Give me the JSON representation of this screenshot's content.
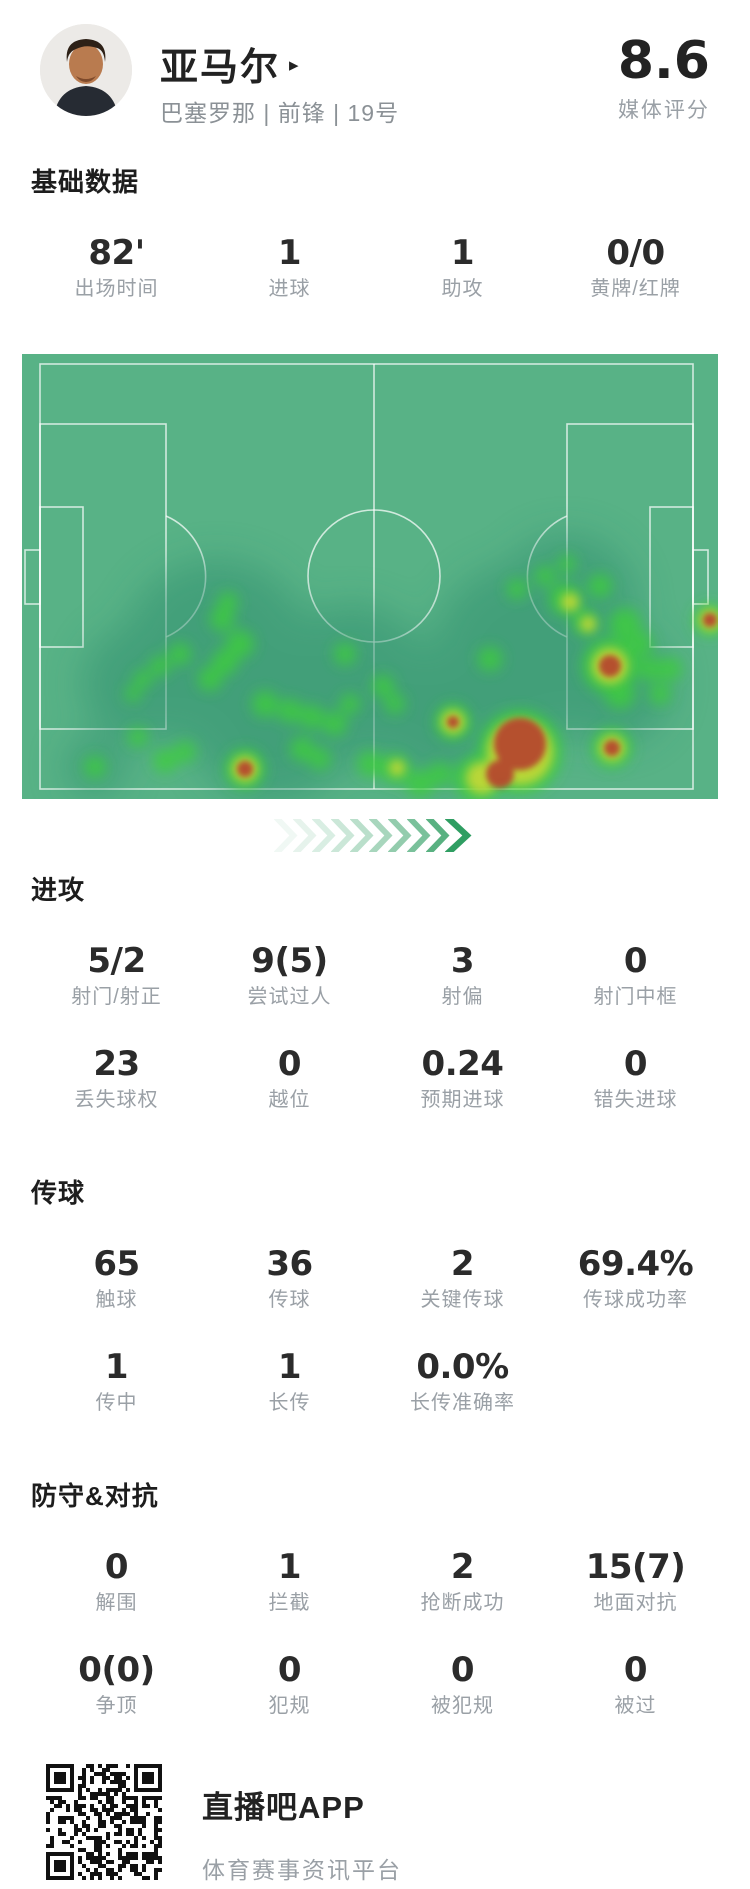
{
  "header": {
    "name": "亚马尔",
    "name_arrow": "▸",
    "meta": "巴塞罗那 | 前锋 | 19号",
    "rating": "8.6",
    "rating_label": "媒体评分"
  },
  "sections": [
    {
      "id": "basic",
      "title": "基础数据",
      "rows": [
        [
          {
            "value": "82'",
            "label": "出场时间"
          },
          {
            "value": "1",
            "label": "进球"
          },
          {
            "value": "1",
            "label": "助攻"
          },
          {
            "value": "0/0",
            "label": "黄牌/红牌"
          }
        ]
      ]
    },
    {
      "id": "attack",
      "title": "进攻",
      "rows": [
        [
          {
            "value": "5/2",
            "label": "射门/射正"
          },
          {
            "value": "9(5)",
            "label": "尝试过人"
          },
          {
            "value": "3",
            "label": "射偏"
          },
          {
            "value": "0",
            "label": "射门中框"
          }
        ],
        [
          {
            "value": "23",
            "label": "丢失球权"
          },
          {
            "value": "0",
            "label": "越位"
          },
          {
            "value": "0.24",
            "label": "预期进球"
          },
          {
            "value": "0",
            "label": "错失进球"
          }
        ]
      ]
    },
    {
      "id": "passing",
      "title": "传球",
      "rows": [
        [
          {
            "value": "65",
            "label": "触球"
          },
          {
            "value": "36",
            "label": "传球"
          },
          {
            "value": "2",
            "label": "关键传球"
          },
          {
            "value": "69.4%",
            "label": "传球成功率"
          }
        ],
        [
          {
            "value": "1",
            "label": "传中"
          },
          {
            "value": "1",
            "label": "长传"
          },
          {
            "value": "0.0%",
            "label": "长传准确率"
          }
        ]
      ]
    },
    {
      "id": "defense",
      "title": "防守&对抗",
      "rows": [
        [
          {
            "value": "0",
            "label": "解围"
          },
          {
            "value": "1",
            "label": "拦截"
          },
          {
            "value": "2",
            "label": "抢断成功"
          },
          {
            "value": "15(7)",
            "label": "地面对抗"
          }
        ],
        [
          {
            "value": "0(0)",
            "label": "争顶"
          },
          {
            "value": "0",
            "label": "犯规"
          },
          {
            "value": "0",
            "label": "被犯规"
          },
          {
            "value": "0",
            "label": "被过"
          }
        ]
      ]
    }
  ],
  "heatmap": {
    "icon": "pitch-heatmap",
    "field_color": "#58b286",
    "line_color": "rgba(255,255,255,0.72)",
    "layers": {
      "dark": {
        "color": "#2f8e6e",
        "opacity": 0.5,
        "blur": 18,
        "points": [
          [
            195,
            300,
            95
          ],
          [
            330,
            330,
            80
          ],
          [
            500,
            300,
            90
          ],
          [
            545,
            250,
            70
          ],
          [
            420,
            360,
            70
          ],
          [
            250,
            370,
            80
          ],
          [
            120,
            330,
            60
          ],
          [
            73,
            413,
            30
          ],
          [
            590,
            330,
            60
          ]
        ]
      },
      "green": {
        "color": "#3ecf3a",
        "opacity": 0.8,
        "blur": 7,
        "points": [
          [
            543,
            245,
            16
          ],
          [
            523,
            222,
            10
          ],
          [
            495,
            235,
            10
          ],
          [
            563,
            268,
            13
          ],
          [
            578,
            232,
            12
          ],
          [
            603,
            270,
            16
          ],
          [
            618,
            290,
            13
          ],
          [
            628,
            315,
            12
          ],
          [
            588,
            312,
            28
          ],
          [
            598,
            340,
            15
          ],
          [
            648,
            315,
            12
          ],
          [
            638,
            340,
            11
          ],
          [
            468,
            305,
            12
          ],
          [
            431,
            368,
            18
          ],
          [
            361,
            332,
            11
          ],
          [
            373,
            350,
            10
          ],
          [
            498,
            398,
            42
          ],
          [
            456,
            425,
            24
          ],
          [
            590,
            394,
            20
          ],
          [
            688,
            266,
            16
          ],
          [
            373,
            415,
            15
          ],
          [
            348,
            410,
            13
          ],
          [
            218,
            290,
            14
          ],
          [
            203,
            308,
            13
          ],
          [
            188,
            325,
            12
          ],
          [
            200,
            265,
            12
          ],
          [
            206,
            248,
            10
          ],
          [
            158,
            300,
            11
          ],
          [
            138,
            312,
            10
          ],
          [
            121,
            325,
            9
          ],
          [
            111,
            340,
            8
          ],
          [
            116,
            383,
            10
          ],
          [
            143,
            407,
            12
          ],
          [
            163,
            398,
            11
          ],
          [
            223,
            415,
            20
          ],
          [
            73,
            413,
            11
          ],
          [
            243,
            350,
            13
          ],
          [
            268,
            357,
            12
          ],
          [
            290,
            363,
            12
          ],
          [
            313,
            370,
            12
          ],
          [
            323,
            300,
            11
          ],
          [
            328,
            350,
            10
          ],
          [
            280,
            395,
            12
          ],
          [
            298,
            405,
            11
          ],
          [
            398,
            430,
            14
          ],
          [
            418,
            420,
            12
          ],
          [
            545,
            210,
            9
          ]
        ]
      },
      "yellow": {
        "color": "#cfd934",
        "opacity": 0.85,
        "blur": 5,
        "points": [
          [
            548,
            248,
            9
          ],
          [
            566,
            270,
            8
          ],
          [
            588,
            312,
            18
          ],
          [
            431,
            368,
            12
          ],
          [
            498,
            398,
            33
          ],
          [
            460,
            424,
            16
          ],
          [
            590,
            394,
            13
          ],
          [
            688,
            266,
            11
          ],
          [
            223,
            415,
            13
          ],
          [
            375,
            414,
            8
          ]
        ]
      },
      "red": {
        "color": "#b5482e",
        "opacity": 0.95,
        "blur": 3,
        "points": [
          [
            588,
            312,
            11
          ],
          [
            431,
            368,
            6
          ],
          [
            498,
            390,
            26
          ],
          [
            478,
            420,
            14
          ],
          [
            590,
            394,
            8
          ],
          [
            688,
            266,
            7
          ],
          [
            223,
            415,
            8
          ]
        ]
      }
    }
  },
  "chevron": {
    "icon": "chevron-right-arrows",
    "color": "#2f9e62",
    "opacities": [
      0.07,
      0.12,
      0.18,
      0.25,
      0.33,
      0.42,
      0.52,
      0.64,
      0.8,
      1
    ]
  },
  "footer": {
    "qr_icon": "qr-code",
    "app_name": "直播吧APP",
    "tagline": "体育赛事资讯平台"
  }
}
